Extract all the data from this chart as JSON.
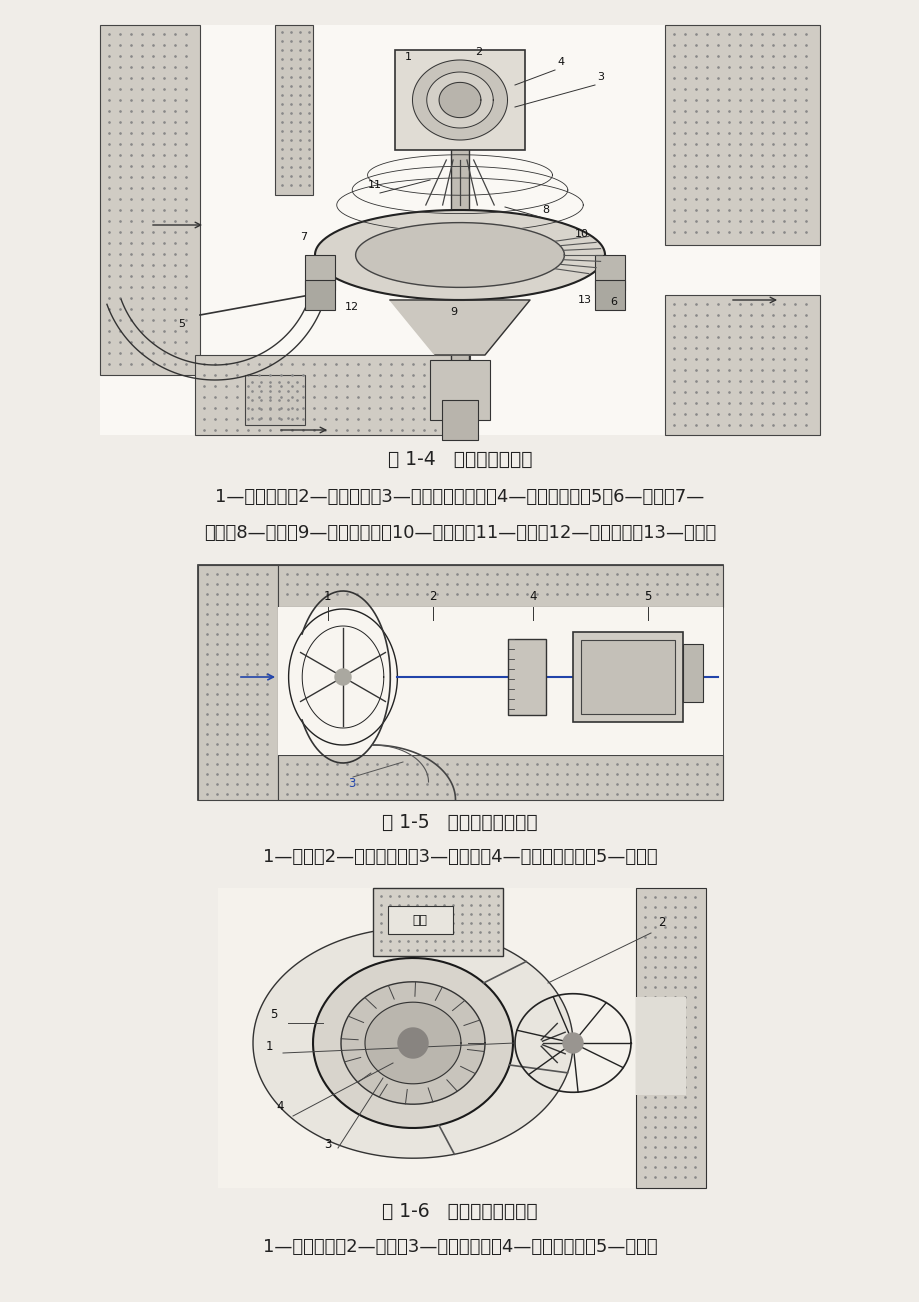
{
  "background_color": "#f0ede8",
  "fig1_caption": "图 1-4   全贯流式水轮机",
  "fig1_desc1": "1—转轮叶片；2—转轮轮缘；3—发电机转子轮辋；4—发电机定子；5、6—支柱；7—",
  "fig1_desc2": "轴颈；8—轮毂；9—锥形插入物；10—拉紧杆；11—导叶；12—推力轴承；13—导轴承",
  "fig2_caption": "图 1-5   轴伸贯流式水轮机",
  "fig2_desc": "1—转轮；2—水轮机主轴；3—尾水管；4—齿轮转动机构；5—发电机",
  "fig3_caption": "图 1-6   灯泡贯流式水轮机",
  "fig3_desc": "1—转轮叶片；2—导叶；3—发电机定子；4—发电机转子；5—灯泡体",
  "text_color": "#222222",
  "caption_fontsize": 13.5,
  "desc_fontsize": 13.0
}
